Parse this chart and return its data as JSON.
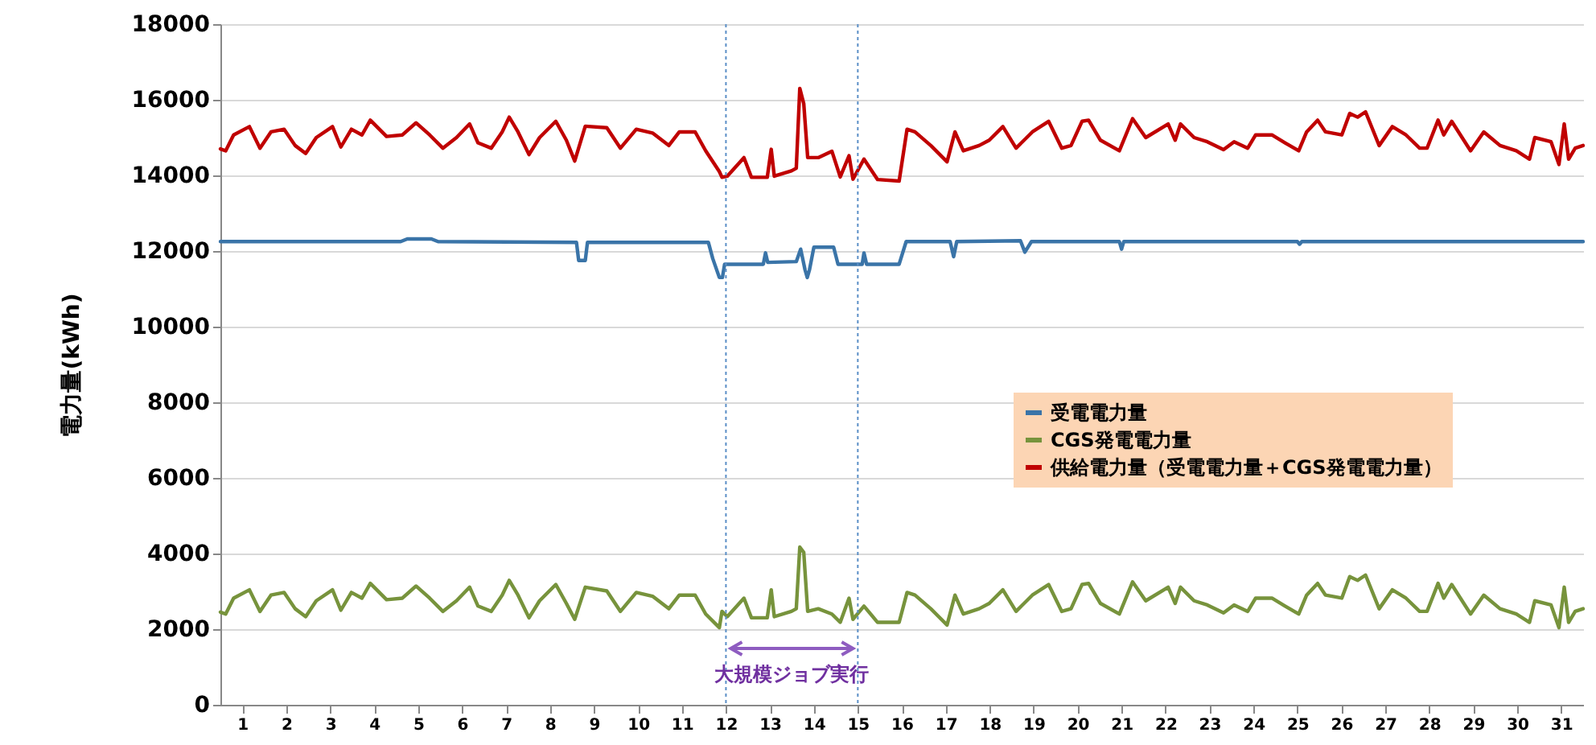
{
  "chart_data": {
    "type": "line",
    "ylabel": "電力量(kWh)",
    "xlim": [
      0.5,
      31.5
    ],
    "xticks": [
      1,
      2,
      3,
      4,
      5,
      6,
      7,
      8,
      9,
      10,
      11,
      12,
      13,
      14,
      15,
      16,
      17,
      18,
      19,
      20,
      21,
      22,
      23,
      24,
      25,
      26,
      27,
      28,
      29,
      30,
      31
    ],
    "ylim": [
      0,
      18000
    ],
    "yticks": [
      0,
      2000,
      4000,
      6000,
      8000,
      10000,
      12000,
      14000,
      16000,
      18000
    ],
    "grid": "y",
    "legend": "right",
    "marker": "none",
    "line_style": "solid",
    "series": [
      {
        "name": "受電電力量",
        "color": "#3a74a8",
        "x": [
          0.5,
          4.6,
          4.75,
          5.3,
          5.45,
          8.6,
          8.65,
          8.8,
          8.85,
          11.6,
          11.7,
          11.85,
          11.92,
          11.97,
          12.85,
          12.9,
          12.95,
          13.6,
          13.7,
          13.8,
          13.85,
          13.9,
          14.0,
          14.45,
          14.55,
          15.1,
          15.14,
          15.2,
          15.94,
          16.1,
          17.1,
          17.18,
          17.25,
          18.7,
          18.8,
          18.95,
          20.95,
          21.0,
          21.05,
          25.0,
          25.05,
          25.1,
          31.5
        ],
        "values": [
          12250,
          12250,
          12320,
          12320,
          12250,
          12230,
          11750,
          11750,
          12230,
          12230,
          11800,
          11300,
          11300,
          11650,
          11650,
          11950,
          11700,
          11720,
          12050,
          11500,
          11300,
          11500,
          12100,
          12100,
          11650,
          11650,
          11950,
          11650,
          11650,
          12250,
          12250,
          11850,
          12250,
          12270,
          11970,
          12250,
          12250,
          12050,
          12250,
          12250,
          12180,
          12250,
          12250
        ]
      },
      {
        "name": "CGS発電電力量",
        "color": "#77933c",
        "x": [
          0.5,
          0.62,
          0.8,
          1.16,
          1.4,
          1.65,
          1.95,
          2.2,
          2.44,
          2.68,
          3.05,
          3.24,
          3.48,
          3.72,
          3.91,
          4.28,
          4.64,
          4.95,
          5.26,
          5.56,
          5.87,
          6.17,
          6.36,
          6.66,
          6.91,
          7.07,
          7.27,
          7.52,
          7.76,
          8.13,
          8.37,
          8.56,
          8.8,
          9.29,
          9.6,
          9.96,
          10.33,
          10.7,
          10.94,
          11.3,
          11.54,
          11.85,
          11.91,
          12.03,
          12.41,
          12.58,
          12.94,
          13.03,
          13.1,
          13.49,
          13.6,
          13.68,
          13.77,
          13.86,
          14.1,
          14.41,
          14.6,
          14.8,
          14.89,
          15.14,
          15.45,
          15.94,
          16.12,
          16.3,
          16.66,
          17.03,
          17.21,
          17.4,
          17.76,
          17.99,
          18.3,
          18.6,
          18.97,
          19.34,
          19.64,
          19.85,
          20.1,
          20.25,
          20.52,
          20.95,
          21.25,
          21.55,
          22.06,
          22.22,
          22.34,
          22.65,
          22.95,
          23.32,
          23.56,
          23.87,
          24.05,
          24.42,
          24.72,
          25.03,
          25.21,
          25.46,
          25.64,
          26.01,
          26.19,
          26.37,
          26.55,
          26.86,
          27.16,
          27.47,
          27.78,
          27.95,
          28.2,
          28.33,
          28.51,
          28.94,
          29.24,
          29.61,
          29.98,
          30.28,
          30.4,
          30.77,
          30.95,
          31.07,
          31.17,
          31.32,
          31.5
        ],
        "values": [
          2450,
          2400,
          2820,
          3040,
          2470,
          2900,
          2970,
          2540,
          2330,
          2750,
          3040,
          2500,
          2970,
          2820,
          3210,
          2780,
          2820,
          3140,
          2820,
          2470,
          2750,
          3110,
          2610,
          2470,
          2900,
          3290,
          2900,
          2300,
          2750,
          3180,
          2680,
          2260,
          3110,
          3010,
          2470,
          2970,
          2870,
          2540,
          2900,
          2900,
          2400,
          2040,
          2470,
          2330,
          2820,
          2300,
          2300,
          3040,
          2330,
          2470,
          2540,
          4170,
          4030,
          2470,
          2540,
          2400,
          2180,
          2820,
          2260,
          2610,
          2180,
          2180,
          2970,
          2900,
          2540,
          2110,
          2900,
          2400,
          2540,
          2680,
          3040,
          2470,
          2900,
          3180,
          2470,
          2540,
          3180,
          3210,
          2680,
          2400,
          3250,
          2750,
          3110,
          2680,
          3110,
          2750,
          2640,
          2430,
          2640,
          2470,
          2820,
          2820,
          2610,
          2400,
          2900,
          3210,
          2900,
          2820,
          3390,
          3290,
          3430,
          2540,
          3040,
          2820,
          2470,
          2470,
          3210,
          2820,
          3180,
          2400,
          2900,
          2540,
          2400,
          2180,
          2750,
          2640,
          2040,
          3110,
          2180,
          2470,
          2540
        ]
      },
      {
        "name": "供給電力量（受電電力量＋CGS発電電力量）",
        "color": "#c00000",
        "x": [
          0.5,
          0.62,
          0.8,
          1.16,
          1.4,
          1.65,
          1.95,
          2.2,
          2.44,
          2.68,
          3.05,
          3.24,
          3.48,
          3.72,
          3.91,
          4.28,
          4.64,
          4.95,
          5.26,
          5.56,
          5.87,
          6.17,
          6.36,
          6.66,
          6.91,
          7.07,
          7.27,
          7.52,
          7.76,
          8.13,
          8.37,
          8.56,
          8.8,
          9.29,
          9.6,
          9.96,
          10.33,
          10.7,
          10.94,
          11.3,
          11.54,
          11.85,
          11.91,
          12.03,
          12.41,
          12.58,
          12.94,
          13.03,
          13.1,
          13.49,
          13.6,
          13.68,
          13.77,
          13.86,
          14.1,
          14.41,
          14.6,
          14.8,
          14.89,
          15.14,
          15.45,
          15.94,
          16.12,
          16.3,
          16.66,
          17.03,
          17.21,
          17.4,
          17.76,
          17.99,
          18.3,
          18.6,
          18.97,
          19.34,
          19.64,
          19.85,
          20.1,
          20.25,
          20.52,
          20.95,
          21.25,
          21.55,
          22.06,
          22.22,
          22.34,
          22.65,
          22.95,
          23.32,
          23.56,
          23.87,
          24.05,
          24.42,
          24.72,
          25.03,
          25.21,
          25.46,
          25.64,
          26.01,
          26.19,
          26.37,
          26.55,
          26.86,
          27.16,
          27.47,
          27.78,
          27.95,
          28.2,
          28.33,
          28.51,
          28.94,
          29.24,
          29.61,
          29.98,
          30.28,
          30.4,
          30.77,
          30.95,
          31.07,
          31.17,
          31.32,
          31.5
        ],
        "values": [
          14700,
          14650,
          15070,
          15290,
          14720,
          15150,
          15220,
          14790,
          14580,
          15000,
          15290,
          14750,
          15220,
          15070,
          15460,
          15030,
          15070,
          15390,
          15070,
          14720,
          15000,
          15360,
          14860,
          14720,
          15150,
          15540,
          15150,
          14550,
          15000,
          15430,
          14930,
          14380,
          15300,
          15260,
          14720,
          15220,
          15120,
          14790,
          15150,
          15150,
          14650,
          14100,
          13950,
          13980,
          14470,
          13950,
          13950,
          14690,
          13980,
          14120,
          14190,
          16300,
          15900,
          14470,
          14470,
          14640,
          13960,
          14520,
          13900,
          14430,
          13890,
          13850,
          15220,
          15150,
          14790,
          14360,
          15150,
          14650,
          14790,
          14930,
          15290,
          14720,
          15150,
          15430,
          14720,
          14790,
          15430,
          15460,
          14930,
          14650,
          15500,
          15000,
          15360,
          14930,
          15360,
          15000,
          14890,
          14680,
          14890,
          14720,
          15070,
          15070,
          14860,
          14650,
          15150,
          15460,
          15150,
          15070,
          15640,
          15540,
          15680,
          14790,
          15290,
          15070,
          14720,
          14720,
          15460,
          15070,
          15430,
          14650,
          15150,
          14790,
          14650,
          14430,
          15000,
          14890,
          14290,
          15360,
          14430,
          14720,
          14790
        ]
      }
    ],
    "ref_lines": [
      {
        "axis": "x",
        "value": 12,
        "color": "#5b8fc7",
        "line_style": "dotted"
      },
      {
        "axis": "x",
        "value": 15,
        "color": "#5b8fc7",
        "line_style": "dotted"
      }
    ],
    "annotations": [
      "大規模ジョブ実行"
    ]
  }
}
